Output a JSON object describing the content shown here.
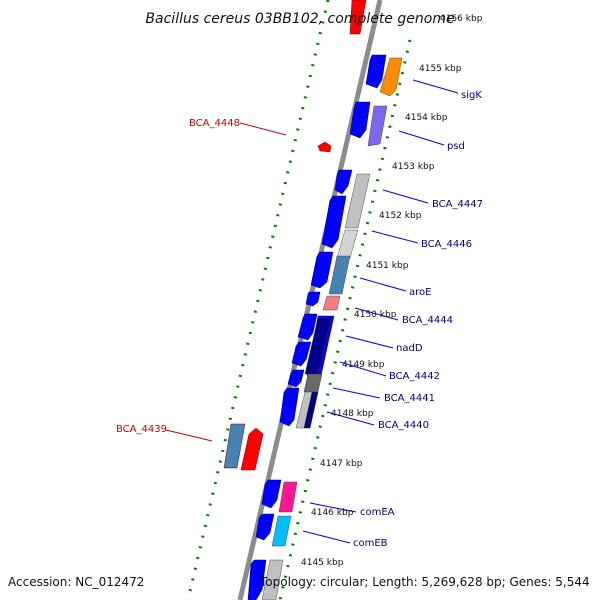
{
  "title": "Bacillus cereus 03BB102, complete genome",
  "footer": {
    "accession": "Accession: NC_012472",
    "topology": "Topology: circular; Length: 5,269,628 bp; Genes: 5,544"
  },
  "colors": {
    "forward_strand": "#0000ff",
    "reverse_strand": "#ff0000",
    "gene_label": "#00008b",
    "rev_label": "#cc0000",
    "backbone": "#8c8c8c",
    "tick_dots": "#008000"
  },
  "kbp_ticks": [
    "4156 kbp",
    "4155 kbp",
    "4154 kbp",
    "4153 kbp",
    "4152 kbp",
    "4151 kbp",
    "4150 kbp",
    "4149 kbp",
    "4148 kbp",
    "4147 kbp",
    "4146 kbp",
    "4145 kbp"
  ],
  "gene_labels_forward": [
    "sigK",
    "psd",
    "BCA_4447",
    "BCA_4446",
    "aroE",
    "BCA_4444",
    "nadD",
    "BCA_4442",
    "BCA_4441",
    "BCA_4440",
    "comEA",
    "comEB"
  ],
  "gene_labels_reverse": [
    "BCA_4448",
    "BCA_4439"
  ]
}
